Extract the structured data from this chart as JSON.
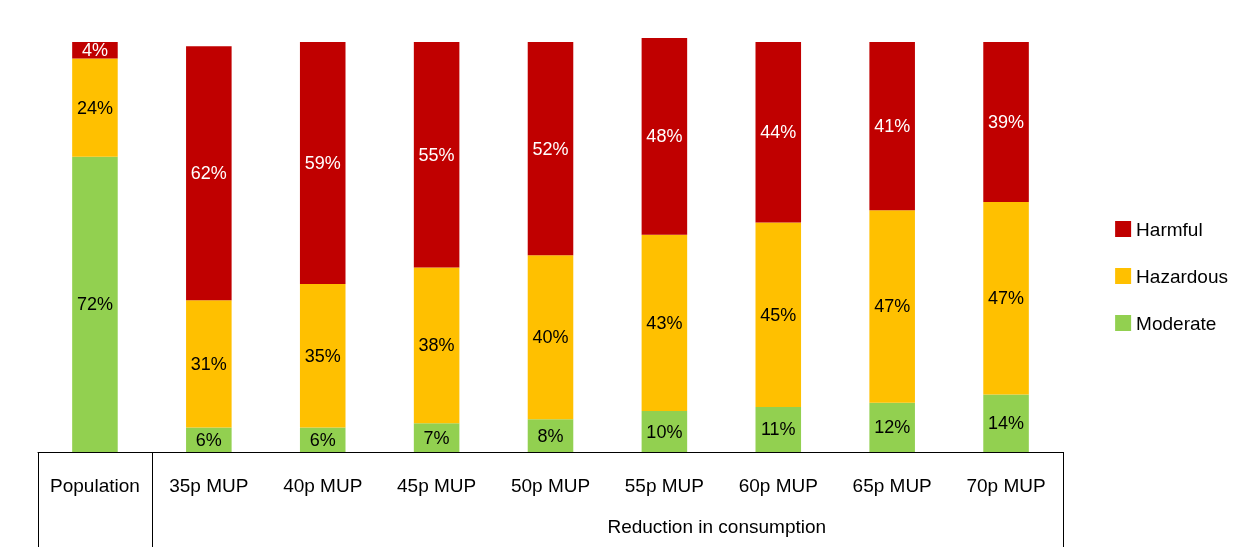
{
  "chart_data": {
    "type": "bar",
    "stacked": true,
    "categories": [
      "Population",
      "35p MUP",
      "40p MUP",
      "45p MUP",
      "50p MUP",
      "55p MUP",
      "60p MUP",
      "65p MUP",
      "70p MUP"
    ],
    "series": [
      {
        "name": "Moderate",
        "color": "#92d050",
        "values": [
          72,
          6,
          6,
          7,
          8,
          10,
          11,
          12,
          14
        ],
        "value_labels": [
          "72%",
          "6%",
          "6%",
          "7%",
          "8%",
          "10%",
          "11%",
          "12%",
          "14%"
        ]
      },
      {
        "name": "Hazardous",
        "color": "#ffc000",
        "values": [
          24,
          31,
          35,
          38,
          40,
          43,
          45,
          47,
          47
        ],
        "value_labels": [
          "24%",
          "31%",
          "35%",
          "38%",
          "40%",
          "43%",
          "45%",
          "47%",
          "47%"
        ]
      },
      {
        "name": "Harmful",
        "color": "#c00000",
        "values": [
          4,
          62,
          59,
          55,
          52,
          48,
          44,
          41,
          39
        ],
        "value_labels": [
          "4%",
          "62%",
          "59%",
          "55%",
          "52%",
          "48%",
          "44%",
          "41%",
          "39%"
        ]
      }
    ],
    "annotations": [
      "Reduction in consumption"
    ],
    "legend": "right"
  }
}
